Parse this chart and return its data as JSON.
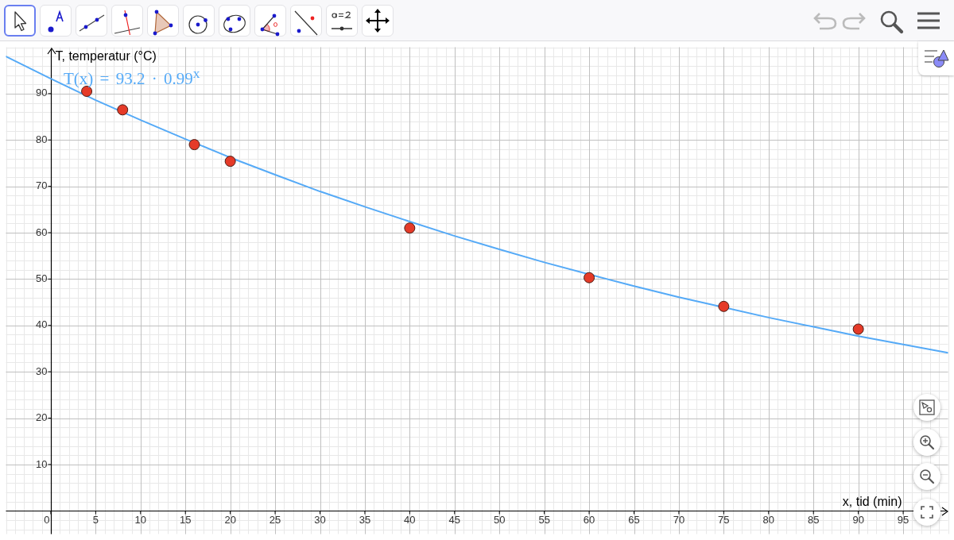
{
  "chart_data": {
    "type": "scatter",
    "xlabel": "x, tid (min)",
    "ylabel": "T, temperatur (°C)",
    "series": [
      {
        "color": "#e53a28",
        "x": [
          4,
          8,
          16,
          20,
          40,
          60,
          75,
          90
        ],
        "values": [
          90.5,
          86.5,
          79,
          75.4,
          61,
          50.3,
          44.1,
          39.2
        ]
      },
      {
        "type": "line",
        "name": "T(x) = 93.2 · 0.99$^{x}$",
        "color": "#55aaf7",
        "marker": "none",
        "x": [
          -5,
          0,
          5,
          10,
          15,
          20,
          25,
          30,
          35,
          40,
          45,
          50,
          55,
          60,
          65,
          70,
          75,
          80,
          85,
          90,
          95,
          100
        ],
        "values": [
          98.0,
          93.2,
          88.6,
          84.3,
          80.2,
          76.2,
          72.5,
          68.9,
          65.6,
          62.4,
          59.3,
          56.4,
          53.6,
          51.0,
          48.5,
          46.1,
          43.9,
          41.7,
          39.7,
          37.7,
          35.9,
          34.1
        ]
      }
    ],
    "xlim": [
      -5,
      100
    ],
    "ylim": [
      -5,
      100
    ],
    "xticks": [
      0,
      5,
      10,
      15,
      20,
      25,
      30,
      35,
      40,
      45,
      50,
      55,
      60,
      65,
      70,
      75,
      80,
      85,
      90,
      95
    ],
    "yticks": [
      10,
      20,
      30,
      40,
      50,
      60,
      70,
      80,
      90
    ],
    "grid": true,
    "marker": "circle"
  }
}
